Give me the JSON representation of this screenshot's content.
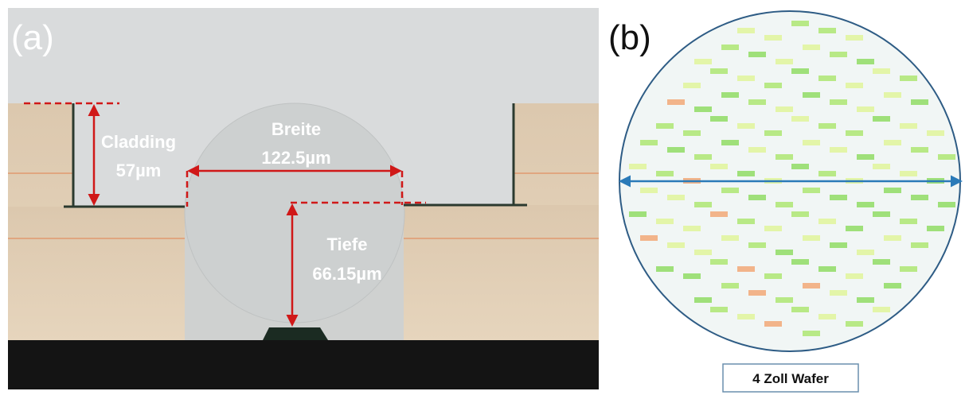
{
  "panel_a": {
    "label": "(a)",
    "cladding": {
      "title": "Cladding",
      "value": "57µm"
    },
    "width": {
      "title": "Breite",
      "value": "122.5µm"
    },
    "depth": {
      "title": "Tiefe",
      "value": "66.15µm"
    }
  },
  "panel_b": {
    "label": "(b)",
    "caption": "4 Zoll Wafer"
  }
}
